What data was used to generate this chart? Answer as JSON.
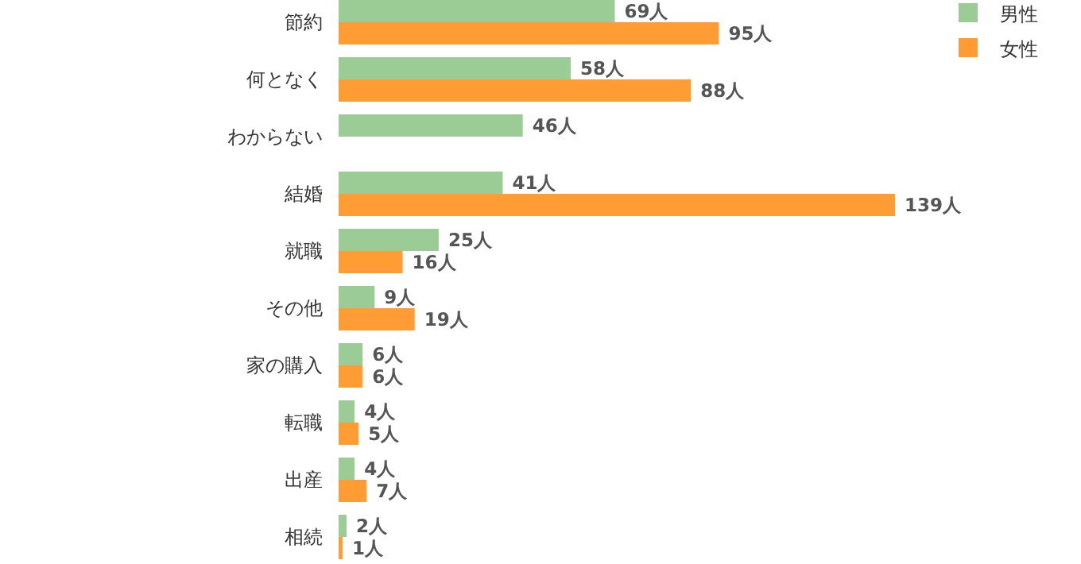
{
  "chart_data": {
    "type": "bar",
    "orientation": "horizontal",
    "legend": "top right",
    "categories": [
      "節約",
      "何となく",
      "わからない",
      "結婚",
      "就職",
      "その他",
      "家の購入",
      "転職",
      "出産",
      "相続"
    ],
    "series": [
      {
        "name": "男性",
        "color": "#9ccc96",
        "values": [
          69,
          58,
          46,
          41,
          25,
          9,
          6,
          4,
          4,
          2
        ],
        "value_labels": [
          "69人",
          "58人",
          "46人",
          "41人",
          "25人",
          "9人",
          "6人",
          "4人",
          "4人",
          "2人"
        ]
      },
      {
        "name": "女性",
        "color": "#ff9c33",
        "values": [
          95,
          88,
          null,
          139,
          16,
          19,
          6,
          5,
          7,
          1
        ],
        "value_labels": [
          "95人",
          "88人",
          null,
          "139人",
          "16人",
          "19人",
          "6人",
          "5人",
          "7人",
          "1人"
        ]
      }
    ]
  }
}
